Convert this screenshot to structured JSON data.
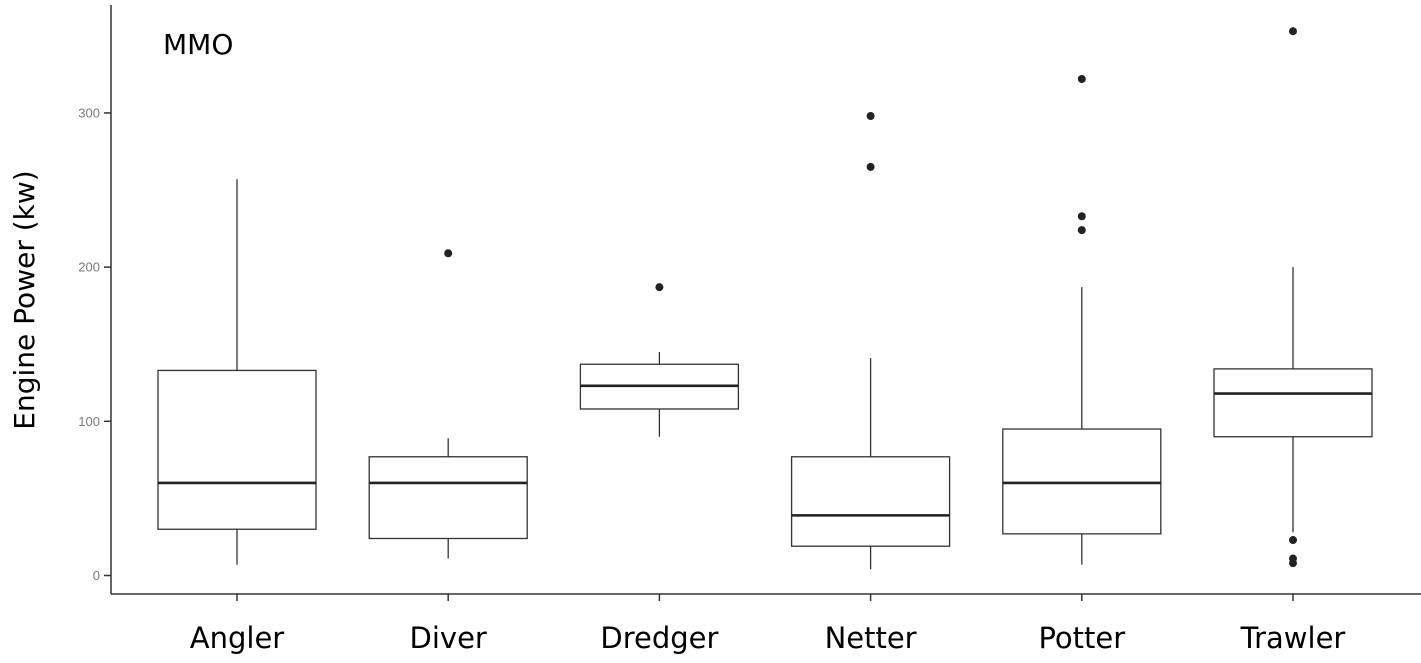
{
  "chart_data": {
    "type": "boxplot",
    "title": "MMO",
    "xlabel": "",
    "ylabel": "Engine Power (kw)",
    "ylim": [
      -12,
      370
    ],
    "yticks": [
      0,
      100,
      200,
      300
    ],
    "grid": false,
    "categories": [
      "Angler",
      "Diver",
      "Dredger",
      "Netter",
      "Potter",
      "Trawler"
    ],
    "boxes": [
      {
        "category": "Angler",
        "whisker_low": 7,
        "q1": 30,
        "median": 60,
        "q3": 133,
        "whisker_high": 257,
        "outliers": []
      },
      {
        "category": "Diver",
        "whisker_low": 11,
        "q1": 24,
        "median": 60,
        "q3": 77,
        "whisker_high": 89,
        "outliers": [
          209
        ]
      },
      {
        "category": "Dredger",
        "whisker_low": 90,
        "q1": 108,
        "median": 123,
        "q3": 137,
        "whisker_high": 145,
        "outliers": [
          187
        ]
      },
      {
        "category": "Netter",
        "whisker_low": 4,
        "q1": 19,
        "median": 39,
        "q3": 77,
        "whisker_high": 141,
        "outliers": [
          265,
          298
        ]
      },
      {
        "category": "Potter",
        "whisker_low": 7,
        "q1": 27,
        "median": 60,
        "q3": 95,
        "whisker_high": 187,
        "outliers": [
          224,
          233,
          322
        ]
      },
      {
        "category": "Trawler",
        "whisker_low": 28,
        "q1": 90,
        "median": 118,
        "q3": 134,
        "whisker_high": 200,
        "outliers": [
          23,
          11,
          8,
          353
        ]
      }
    ]
  }
}
